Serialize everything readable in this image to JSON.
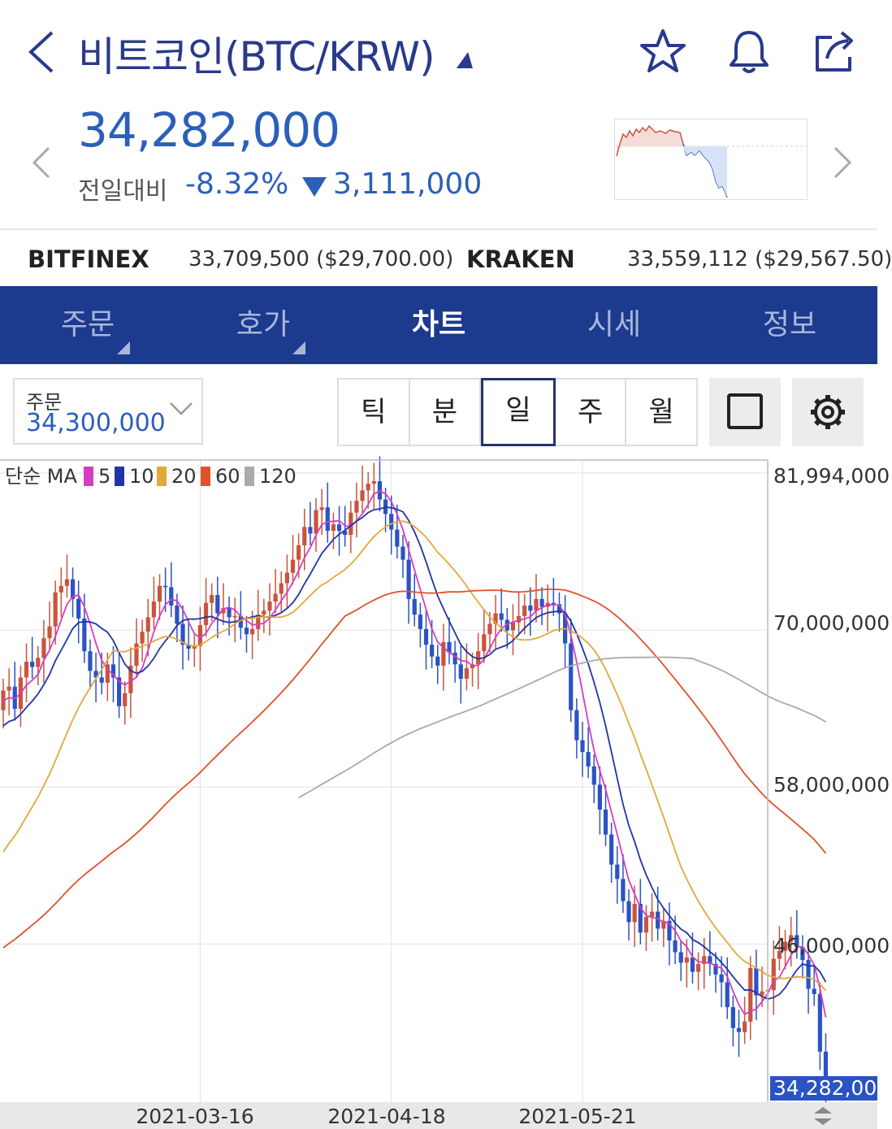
{
  "header": {
    "title": "비트코인(BTC/KRW)",
    "icons": [
      "back-arrow-icon",
      "dropdown-caret-icon",
      "star-icon",
      "bell-icon",
      "share-icon"
    ]
  },
  "price": {
    "current": "34,282,000",
    "prev_label": "전일대비",
    "change_pct": "-8.32%",
    "change_abs": "3,111,000"
  },
  "exchanges": [
    {
      "name": "BITFINEX",
      "value": "33,709,500 ($29,700.00)"
    },
    {
      "name": "KRAKEN",
      "value": "33,559,112 ($29,567.50)"
    }
  ],
  "tabs": [
    {
      "label": "주문",
      "has_menu": true
    },
    {
      "label": "호가",
      "has_menu": true
    },
    {
      "label": "차트",
      "active": true
    },
    {
      "label": "시세"
    },
    {
      "label": "정보"
    }
  ],
  "order": {
    "label": "주문",
    "value": "34,300,000"
  },
  "periods": [
    "틱",
    "분",
    "일",
    "주",
    "월"
  ],
  "selected_period": "일",
  "chart_data": {
    "type": "candlestick",
    "legend": {
      "prefix": "단순 MA",
      "items": [
        {
          "label": "5",
          "color": "#d63cc2"
        },
        {
          "label": "10",
          "color": "#1f35a6"
        },
        {
          "label": "20",
          "color": "#e0a93a"
        },
        {
          "label": "60",
          "color": "#e0522a"
        },
        {
          "label": "120",
          "color": "#aaaaaa"
        }
      ]
    },
    "y_ticks": [
      81994000,
      70000000,
      58000000,
      46000000
    ],
    "y_labels": [
      "81,994,000",
      "70,000,000",
      "58,000,000",
      "46,000,000"
    ],
    "ylim": [
      34282000,
      81994000
    ],
    "last_price_label": "34,282,000",
    "last_price": 34282000,
    "x_labels": [
      "2021-03-16",
      "2021-04-18",
      "2021-05-21"
    ],
    "x_label_index": [
      34,
      67,
      100
    ],
    "up_color": "#c9543e",
    "down_color": "#2a53c4",
    "closes": [
      65000000,
      65300000,
      63600000,
      66000000,
      67200000,
      66800000,
      67500000,
      69000000,
      69900000,
      72500000,
      73000000,
      73500000,
      72000000,
      70500000,
      68000000,
      66500000,
      66000000,
      65600000,
      67000000,
      66000000,
      63800000,
      64800000,
      66900000,
      68600000,
      69500000,
      70600000,
      71800000,
      73000000,
      72900000,
      71500000,
      70100000,
      68500000,
      68200000,
      68400000,
      70000000,
      71700000,
      72300000,
      70900000,
      71300000,
      70600000,
      70700000,
      69800000,
      69300000,
      69700000,
      70800000,
      71100000,
      71800000,
      72400000,
      73200000,
      74000000,
      75000000,
      76100000,
      77500000,
      77000000,
      78800000,
      79000000,
      77200000,
      77700000,
      77200000,
      76900000,
      78600000,
      79500000,
      80300000,
      80800000,
      81000000,
      79600000,
      78500000,
      77300000,
      76000000,
      75000000,
      72000000,
      70800000,
      69700000,
      68500000,
      67600000,
      66900000,
      68700000,
      67900000,
      67000000,
      65900000,
      66700000,
      67000000,
      68000000,
      69300000,
      70100000,
      70900000,
      70400000,
      69600000,
      70200000,
      70700000,
      71500000,
      71100000,
      72000000,
      71400000,
      71700000,
      71600000,
      70900000,
      68600000,
      63500000,
      61200000,
      60300000,
      59200000,
      57800000,
      55900000,
      54000000,
      51700000,
      50600000,
      48900000,
      47300000,
      48700000,
      46500000,
      47700000,
      48100000,
      46800000,
      47400000,
      45900000,
      45000000,
      44200000,
      44600000,
      43500000,
      44100000,
      44700000,
      44100000,
      43300000,
      42700000,
      40800000,
      39200000,
      38900000,
      39700000,
      43800000,
      41700000,
      42000000,
      42100000,
      44500000,
      45100000,
      45800000,
      46300000,
      45400000,
      44400000,
      42200000,
      41800000,
      37400000,
      34282000
    ]
  }
}
